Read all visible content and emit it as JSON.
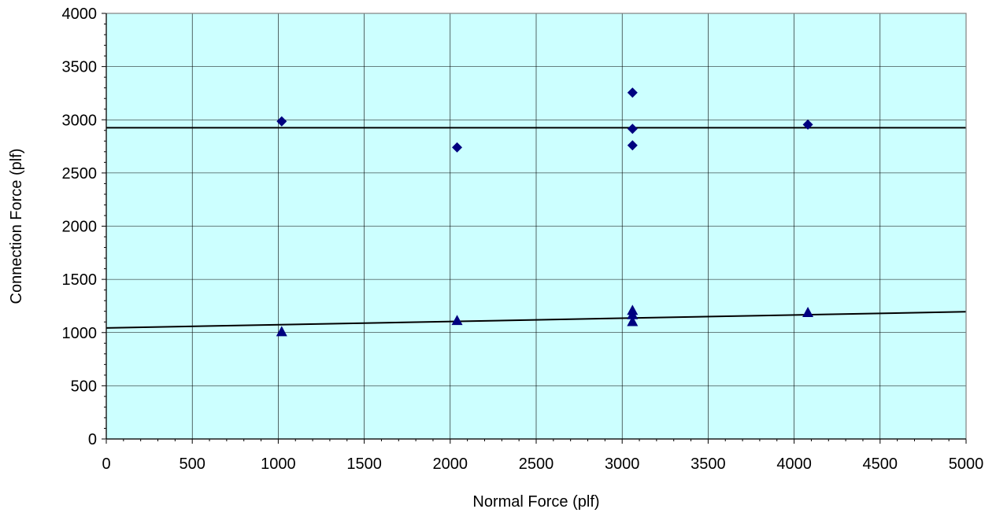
{
  "chart_data": {
    "type": "scatter",
    "title": "",
    "xlabel": "Normal Force (plf)",
    "ylabel": "Connection Force (plf)",
    "xlim": [
      0,
      5000
    ],
    "ylim": [
      0,
      4000
    ],
    "x_ticks": [
      0,
      500,
      1000,
      1500,
      2000,
      2500,
      3000,
      3500,
      4000,
      4500,
      5000
    ],
    "y_ticks": [
      0,
      500,
      1000,
      1500,
      2000,
      2500,
      3000,
      3500,
      4000
    ],
    "grid": true,
    "plot_background": "#ccffff",
    "series": [
      {
        "marker": "diamond",
        "color": "#000080",
        "points": [
          {
            "x": 1020,
            "y": 2985
          },
          {
            "x": 2040,
            "y": 2740
          },
          {
            "x": 3060,
            "y": 3255
          },
          {
            "x": 3060,
            "y": 2915
          },
          {
            "x": 3060,
            "y": 2760
          },
          {
            "x": 4080,
            "y": 2955
          }
        ]
      },
      {
        "marker": "triangle",
        "color": "#000080",
        "points": [
          {
            "x": 1020,
            "y": 1010
          },
          {
            "x": 2040,
            "y": 1115
          },
          {
            "x": 3060,
            "y": 1210
          },
          {
            "x": 3060,
            "y": 1170
          },
          {
            "x": 3060,
            "y": 1105
          },
          {
            "x": 4080,
            "y": 1190
          }
        ]
      }
    ],
    "trendlines": [
      {
        "color": "#000000",
        "x": [
          0,
          5000
        ],
        "y": [
          2925,
          2925
        ]
      },
      {
        "color": "#000000",
        "x": [
          0,
          5000
        ],
        "y": [
          1043,
          1196
        ]
      }
    ]
  }
}
